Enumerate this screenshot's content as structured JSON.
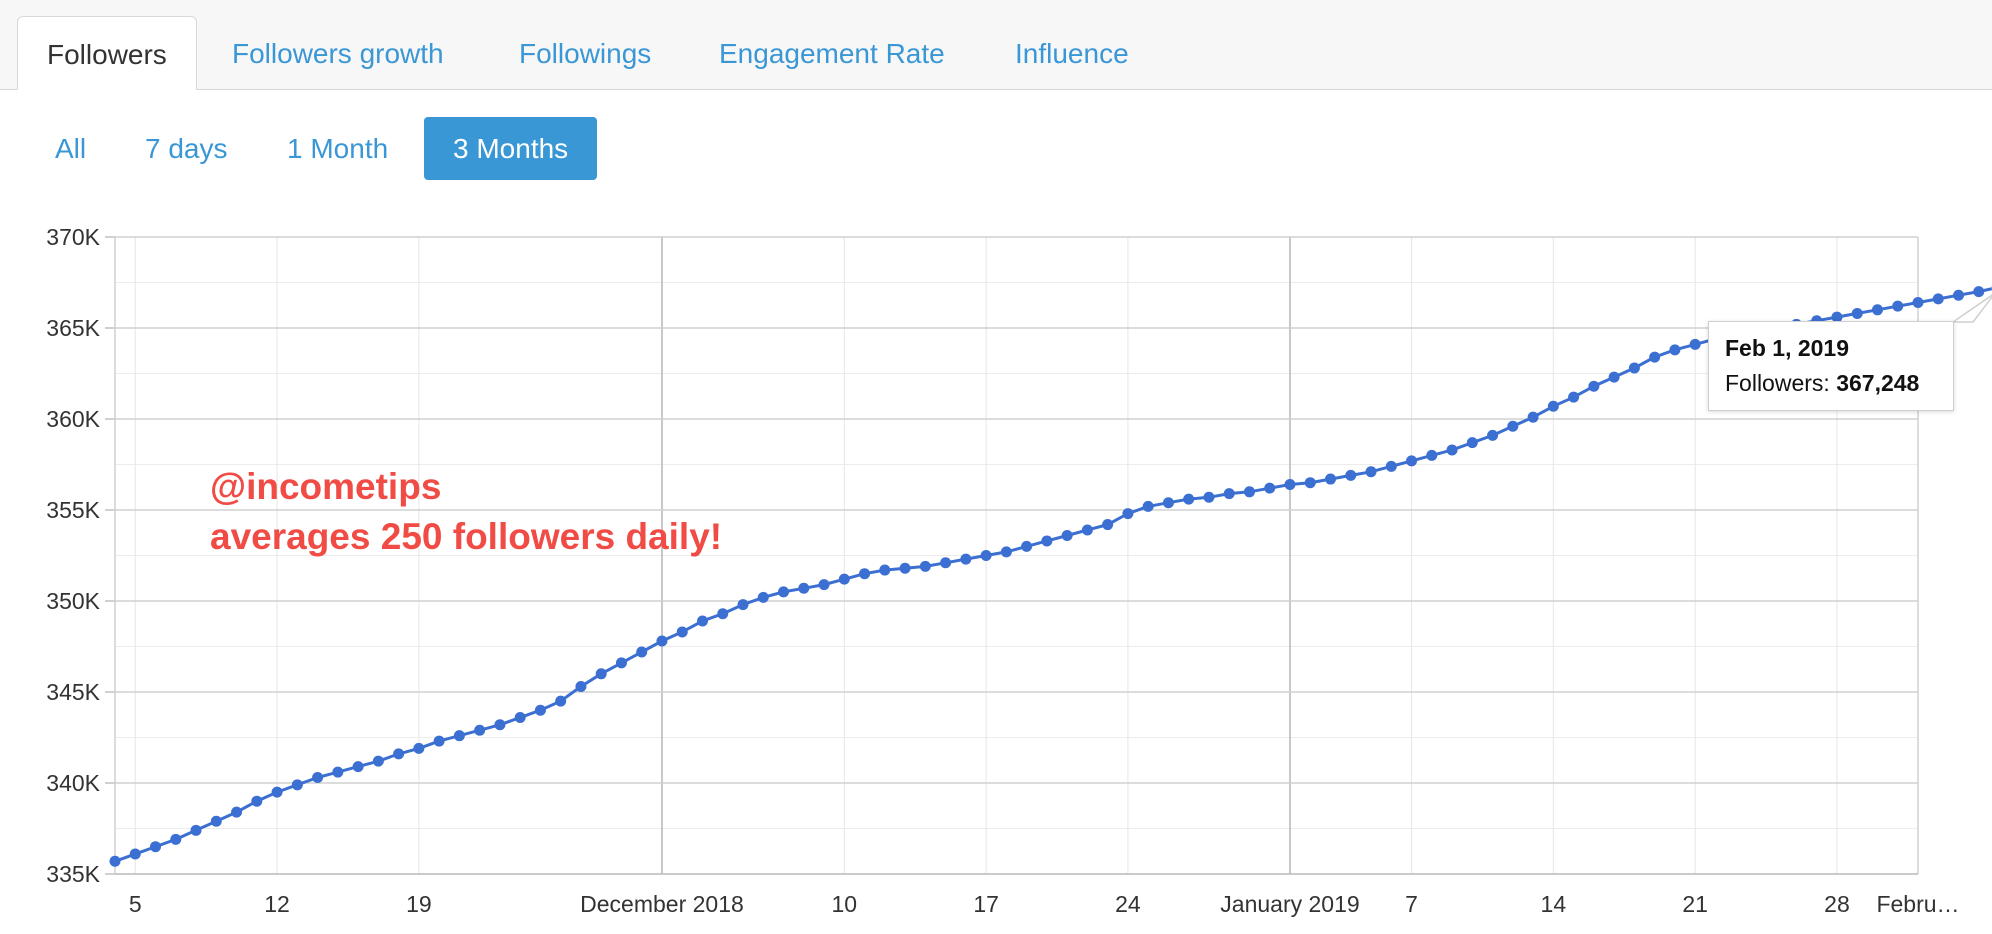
{
  "tabs": [
    {
      "label": "Followers",
      "active": true
    },
    {
      "label": "Followers growth",
      "active": false
    },
    {
      "label": "Followings",
      "active": false
    },
    {
      "label": "Engagement Rate",
      "active": false
    },
    {
      "label": "Influence",
      "active": false
    }
  ],
  "range_buttons": [
    {
      "label": "All",
      "active": false
    },
    {
      "label": "7 days",
      "active": false
    },
    {
      "label": "1 Month",
      "active": false
    },
    {
      "label": "3 Months",
      "active": true
    }
  ],
  "tooltip": {
    "date": "Feb 1, 2019",
    "label": "Followers:",
    "value": "367,248"
  },
  "annotation": {
    "line1": "@incometips",
    "line2": "averages 250 followers daily!"
  },
  "colors": {
    "series": "#3b6fd1",
    "accent": "#3a97d6",
    "annotation": "#f04b45"
  },
  "chart_data": {
    "type": "line",
    "title": "",
    "xlabel": "",
    "ylabel": "",
    "x_start": "2018-11-04",
    "x_end": "2019-02-01",
    "xlim": [
      "2018-11-04",
      "2019-02-01"
    ],
    "ylim": [
      335000,
      370000
    ],
    "y_ticks": [
      {
        "value": 335000,
        "label": "335K"
      },
      {
        "value": 340000,
        "label": "340K"
      },
      {
        "value": 345000,
        "label": "345K"
      },
      {
        "value": 350000,
        "label": "350K"
      },
      {
        "value": 355000,
        "label": "355K"
      },
      {
        "value": 360000,
        "label": "360K"
      },
      {
        "value": 365000,
        "label": "365K"
      },
      {
        "value": 370000,
        "label": "370K"
      }
    ],
    "x_ticks": [
      {
        "date": "2018-11-05",
        "label": "5"
      },
      {
        "date": "2018-11-12",
        "label": "12"
      },
      {
        "date": "2018-11-19",
        "label": "19"
      },
      {
        "date": "2018-12-01",
        "label": "December 2018"
      },
      {
        "date": "2018-12-10",
        "label": "10"
      },
      {
        "date": "2018-12-17",
        "label": "17"
      },
      {
        "date": "2018-12-24",
        "label": "24"
      },
      {
        "date": "2019-01-01",
        "label": "January 2019"
      },
      {
        "date": "2019-01-07",
        "label": "7"
      },
      {
        "date": "2019-01-14",
        "label": "14"
      },
      {
        "date": "2019-01-21",
        "label": "21"
      },
      {
        "date": "2019-01-28",
        "label": "28"
      },
      {
        "date": "2019-02-01",
        "label": "Febru…"
      }
    ],
    "month_lines": [
      "2018-12-01",
      "2019-01-01"
    ],
    "grid": true,
    "legend": "none",
    "series": [
      {
        "name": "Followers",
        "values": [
          335700,
          336100,
          336500,
          336900,
          337400,
          337900,
          338400,
          339000,
          339500,
          339900,
          340300,
          340600,
          340900,
          341200,
          341600,
          341900,
          342300,
          342600,
          342900,
          343200,
          343600,
          344000,
          344500,
          345300,
          346000,
          346600,
          347200,
          347800,
          348300,
          348900,
          349300,
          349800,
          350200,
          350500,
          350700,
          350900,
          351200,
          351500,
          351700,
          351800,
          351900,
          352100,
          352300,
          352500,
          352700,
          353000,
          353300,
          353600,
          353900,
          354200,
          354800,
          355200,
          355400,
          355600,
          355700,
          355900,
          356000,
          356200,
          356400,
          356500,
          356700,
          356900,
          357100,
          357400,
          357700,
          358000,
          358300,
          358700,
          359100,
          359600,
          360100,
          360700,
          361200,
          361800,
          362300,
          362800,
          363400,
          363800,
          364100,
          364400,
          364700,
          364900,
          365000,
          365200,
          365400,
          365600,
          365800,
          366000,
          366200,
          366400,
          366600,
          366800,
          367000,
          367248
        ]
      }
    ]
  }
}
